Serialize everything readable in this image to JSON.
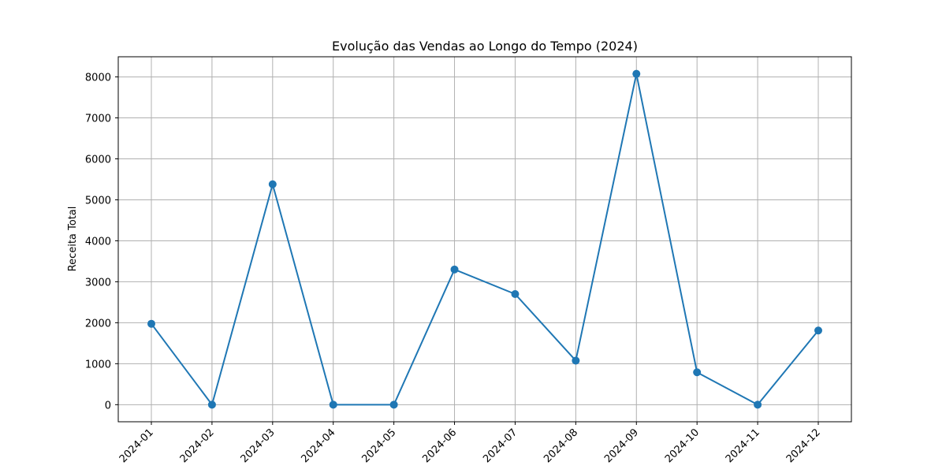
{
  "chart_data": {
    "type": "line",
    "title": "Evolução das Vendas ao Longo do Tempo (2024)",
    "xlabel": "",
    "ylabel": "Receita Total",
    "categories": [
      "2024-01",
      "2024-02",
      "2024-03",
      "2024-04",
      "2024-05",
      "2024-06",
      "2024-07",
      "2024-08",
      "2024-09",
      "2024-10",
      "2024-11",
      "2024-12"
    ],
    "series": [
      {
        "values": [
          1975,
          0,
          5380,
          0,
          0,
          3300,
          2700,
          1075,
          8075,
          790,
          0,
          1810
        ],
        "color": "#1f77b4",
        "marker": "circle"
      }
    ],
    "yticks": [
      0,
      1000,
      2000,
      3000,
      4000,
      5000,
      6000,
      7000,
      8000
    ],
    "ylim": [
      -417,
      8492
    ],
    "grid": true,
    "xtick_rotation": 45
  }
}
